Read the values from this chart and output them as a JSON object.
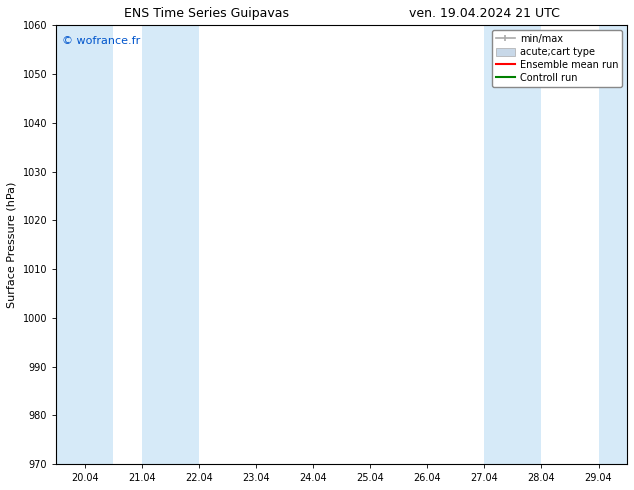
{
  "title_left": "ENS Time Series Guipavas",
  "title_right": "ven. 19.04.2024 21 UTC",
  "ylabel": "Surface Pressure (hPa)",
  "ylim": [
    970,
    1060
  ],
  "yticks": [
    970,
    980,
    990,
    1000,
    1010,
    1020,
    1030,
    1040,
    1050,
    1060
  ],
  "xtick_labels": [
    "20.04",
    "21.04",
    "22.04",
    "23.04",
    "24.04",
    "25.04",
    "26.04",
    "27.04",
    "28.04",
    "29.04"
  ],
  "xtick_positions": [
    0,
    1,
    2,
    3,
    4,
    5,
    6,
    7,
    8,
    9
  ],
  "bg_color": "#ffffff",
  "plot_bg_color": "#ffffff",
  "shaded_bands": [
    {
      "xmin": -0.5,
      "xmax": 0.5,
      "color": "#d6eaf8"
    },
    {
      "xmin": 1.0,
      "xmax": 2.0,
      "color": "#d6eaf8"
    },
    {
      "xmin": 7.0,
      "xmax": 8.0,
      "color": "#d6eaf8"
    },
    {
      "xmin": 9.0,
      "xmax": 9.5,
      "color": "#d6eaf8"
    }
  ],
  "watermark": "© wofrance.fr",
  "watermark_color": "#0055cc",
  "legend_items": [
    {
      "label": "min/max",
      "color": "#aaaaaa",
      "style": "errorbar"
    },
    {
      "label": "acute;cart type",
      "color": "#c8d8e8",
      "style": "bar"
    },
    {
      "label": "Ensemble mean run",
      "color": "#ff0000",
      "style": "line"
    },
    {
      "label": "Controll run",
      "color": "#008000",
      "style": "line"
    }
  ],
  "title_fontsize": 9,
  "tick_fontsize": 7,
  "label_fontsize": 8,
  "legend_fontsize": 7,
  "watermark_fontsize": 8
}
